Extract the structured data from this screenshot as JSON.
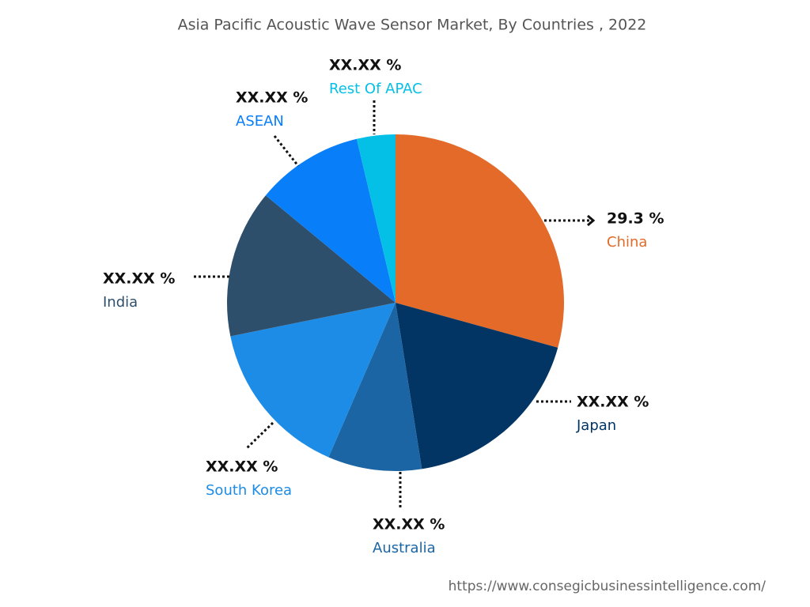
{
  "chart_data": {
    "type": "pie",
    "title": "Asia Pacific Acoustic Wave Sensor Market, By Countries , 2022",
    "categories": [
      "China",
      "Japan",
      "Australia",
      "South Korea",
      "India",
      "ASEAN",
      "Rest Of APAC"
    ],
    "values": [
      29.3,
      18.2,
      9.0,
      15.3,
      14.2,
      10.3,
      3.7
    ],
    "value_labels": [
      "29.3 %",
      "XX.XX %",
      "XX.XX %",
      "XX.XX %",
      "XX.XX %",
      "XX.XX %",
      "XX.XX %"
    ],
    "colors": [
      "#e36a28",
      "#023564",
      "#1b65a5",
      "#1c8ce6",
      "#2e4f6c",
      "#087ef9",
      "#05c0e6"
    ]
  },
  "source": "https://www.consegicbusinessintelligence.com/"
}
